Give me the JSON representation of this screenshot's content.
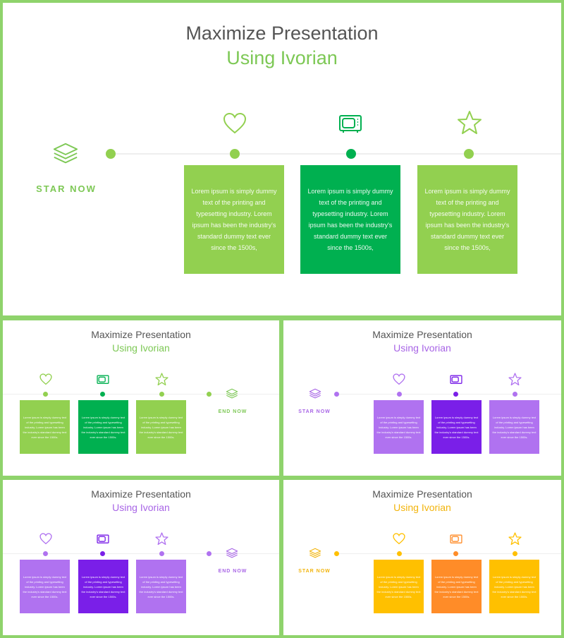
{
  "main": {
    "title_line1": "Maximize Presentation",
    "title_line2": "Using Ivorian",
    "start_label": "STAR NOW",
    "box_text": "Lorem ipsum is simply dummy text of the printing and typesetting industry. Lorem ipsum has been the industry's standard dummy text ever since the 1500s,"
  },
  "thumbs": [
    {
      "title_line1": "Maximize Presentation",
      "title_line2": "Using Ivorian",
      "end_label": "END NOW",
      "box_text": "Lorem ipsum is simply dummy text of the printing and typesetting industry. Lorem ipsum has been the industry's standard dummy text ever since the 1500s."
    },
    {
      "title_line1": "Maximize Presentation",
      "title_line2": "Using Ivorian",
      "start_label": "STAR NOW",
      "box_text": "Lorem ipsum is simply dummy text of the printing and typesetting industry. Lorem ipsum has been the industry's standard dummy text ever since the 1500s."
    },
    {
      "title_line1": "Maximize Presentation",
      "title_line2": "Using Ivorian",
      "end_label": "END NOW",
      "box_text": "Lorem ipsum is simply dummy text of the printing and typesetting industry. Lorem ipsum has been the industry's standard dummy text ever since the 1500s."
    },
    {
      "title_line1": "Maximize Presentation",
      "title_line2": "Using Ivorian",
      "start_label": "STAR NOW",
      "box_text": "Lorem ipsum is simply dummy text of the printing and typesetting industry. Lorem ipsum has been the industry's standard dummy text ever since the 1500s."
    }
  ],
  "icons": [
    "layers-icon",
    "heart-icon",
    "tv-icon",
    "star-icon"
  ],
  "colors": {
    "frame": "#8fd36c",
    "green_light": "#92d050",
    "green_dark": "#00b050",
    "purple_light": "#b072f0",
    "purple_dark": "#7a1fe8",
    "orange_light": "#ffc000",
    "orange_dark": "#ff8c28"
  }
}
